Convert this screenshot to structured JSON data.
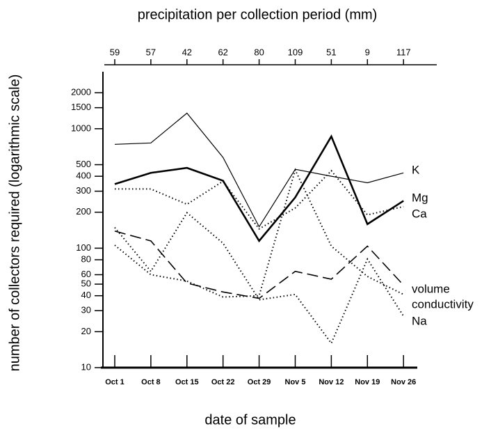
{
  "chart_data": {
    "type": "line",
    "top_title": "precipitation per collection period (mm)",
    "top_values": [
      59,
      57,
      42,
      62,
      80,
      109,
      51,
      9,
      117
    ],
    "y_label": "number of collectors required (logarithmic scale)",
    "x_label": "date of sample",
    "categories": [
      "Oct 1",
      "Oct 8",
      "Oct 15",
      "Oct 22",
      "Oct 29",
      "Nov 5",
      "Nov 12",
      "Nov 19",
      "Nov 26"
    ],
    "log_scale": true,
    "ylim": [
      10,
      3000
    ],
    "yticks": [
      10,
      20,
      30,
      40,
      50,
      60,
      80,
      100,
      200,
      300,
      400,
      500,
      1000,
      1500,
      2000
    ],
    "series": [
      {
        "name": "K",
        "color": "#000000",
        "style": "thin",
        "values": [
          740,
          760,
          1350,
          575,
          151,
          457,
          400,
          353,
          427
        ]
      },
      {
        "name": "Mg",
        "color": "#000000",
        "style": "thick",
        "values": [
          344,
          427,
          470,
          367,
          115,
          266,
          862,
          159,
          249
        ]
      },
      {
        "name": "Ca",
        "color": "#000000",
        "style": "dotted",
        "values": [
          313,
          313,
          233,
          363,
          145,
          217,
          445,
          190,
          223
        ]
      },
      {
        "name": "volume",
        "color": "#000000",
        "style": "dashed",
        "values": [
          139,
          115,
          51,
          43,
          38,
          64,
          55,
          104,
          49
        ]
      },
      {
        "name": "conductivity",
        "color": "#000000",
        "style": "dotted",
        "values": [
          106,
          60,
          53,
          39,
          40,
          451,
          104,
          58,
          41
        ]
      },
      {
        "name": "Na",
        "color": "#000000",
        "style": "dotted",
        "values": [
          149,
          64,
          198,
          110,
          37,
          41,
          16,
          81,
          27
        ]
      }
    ]
  }
}
